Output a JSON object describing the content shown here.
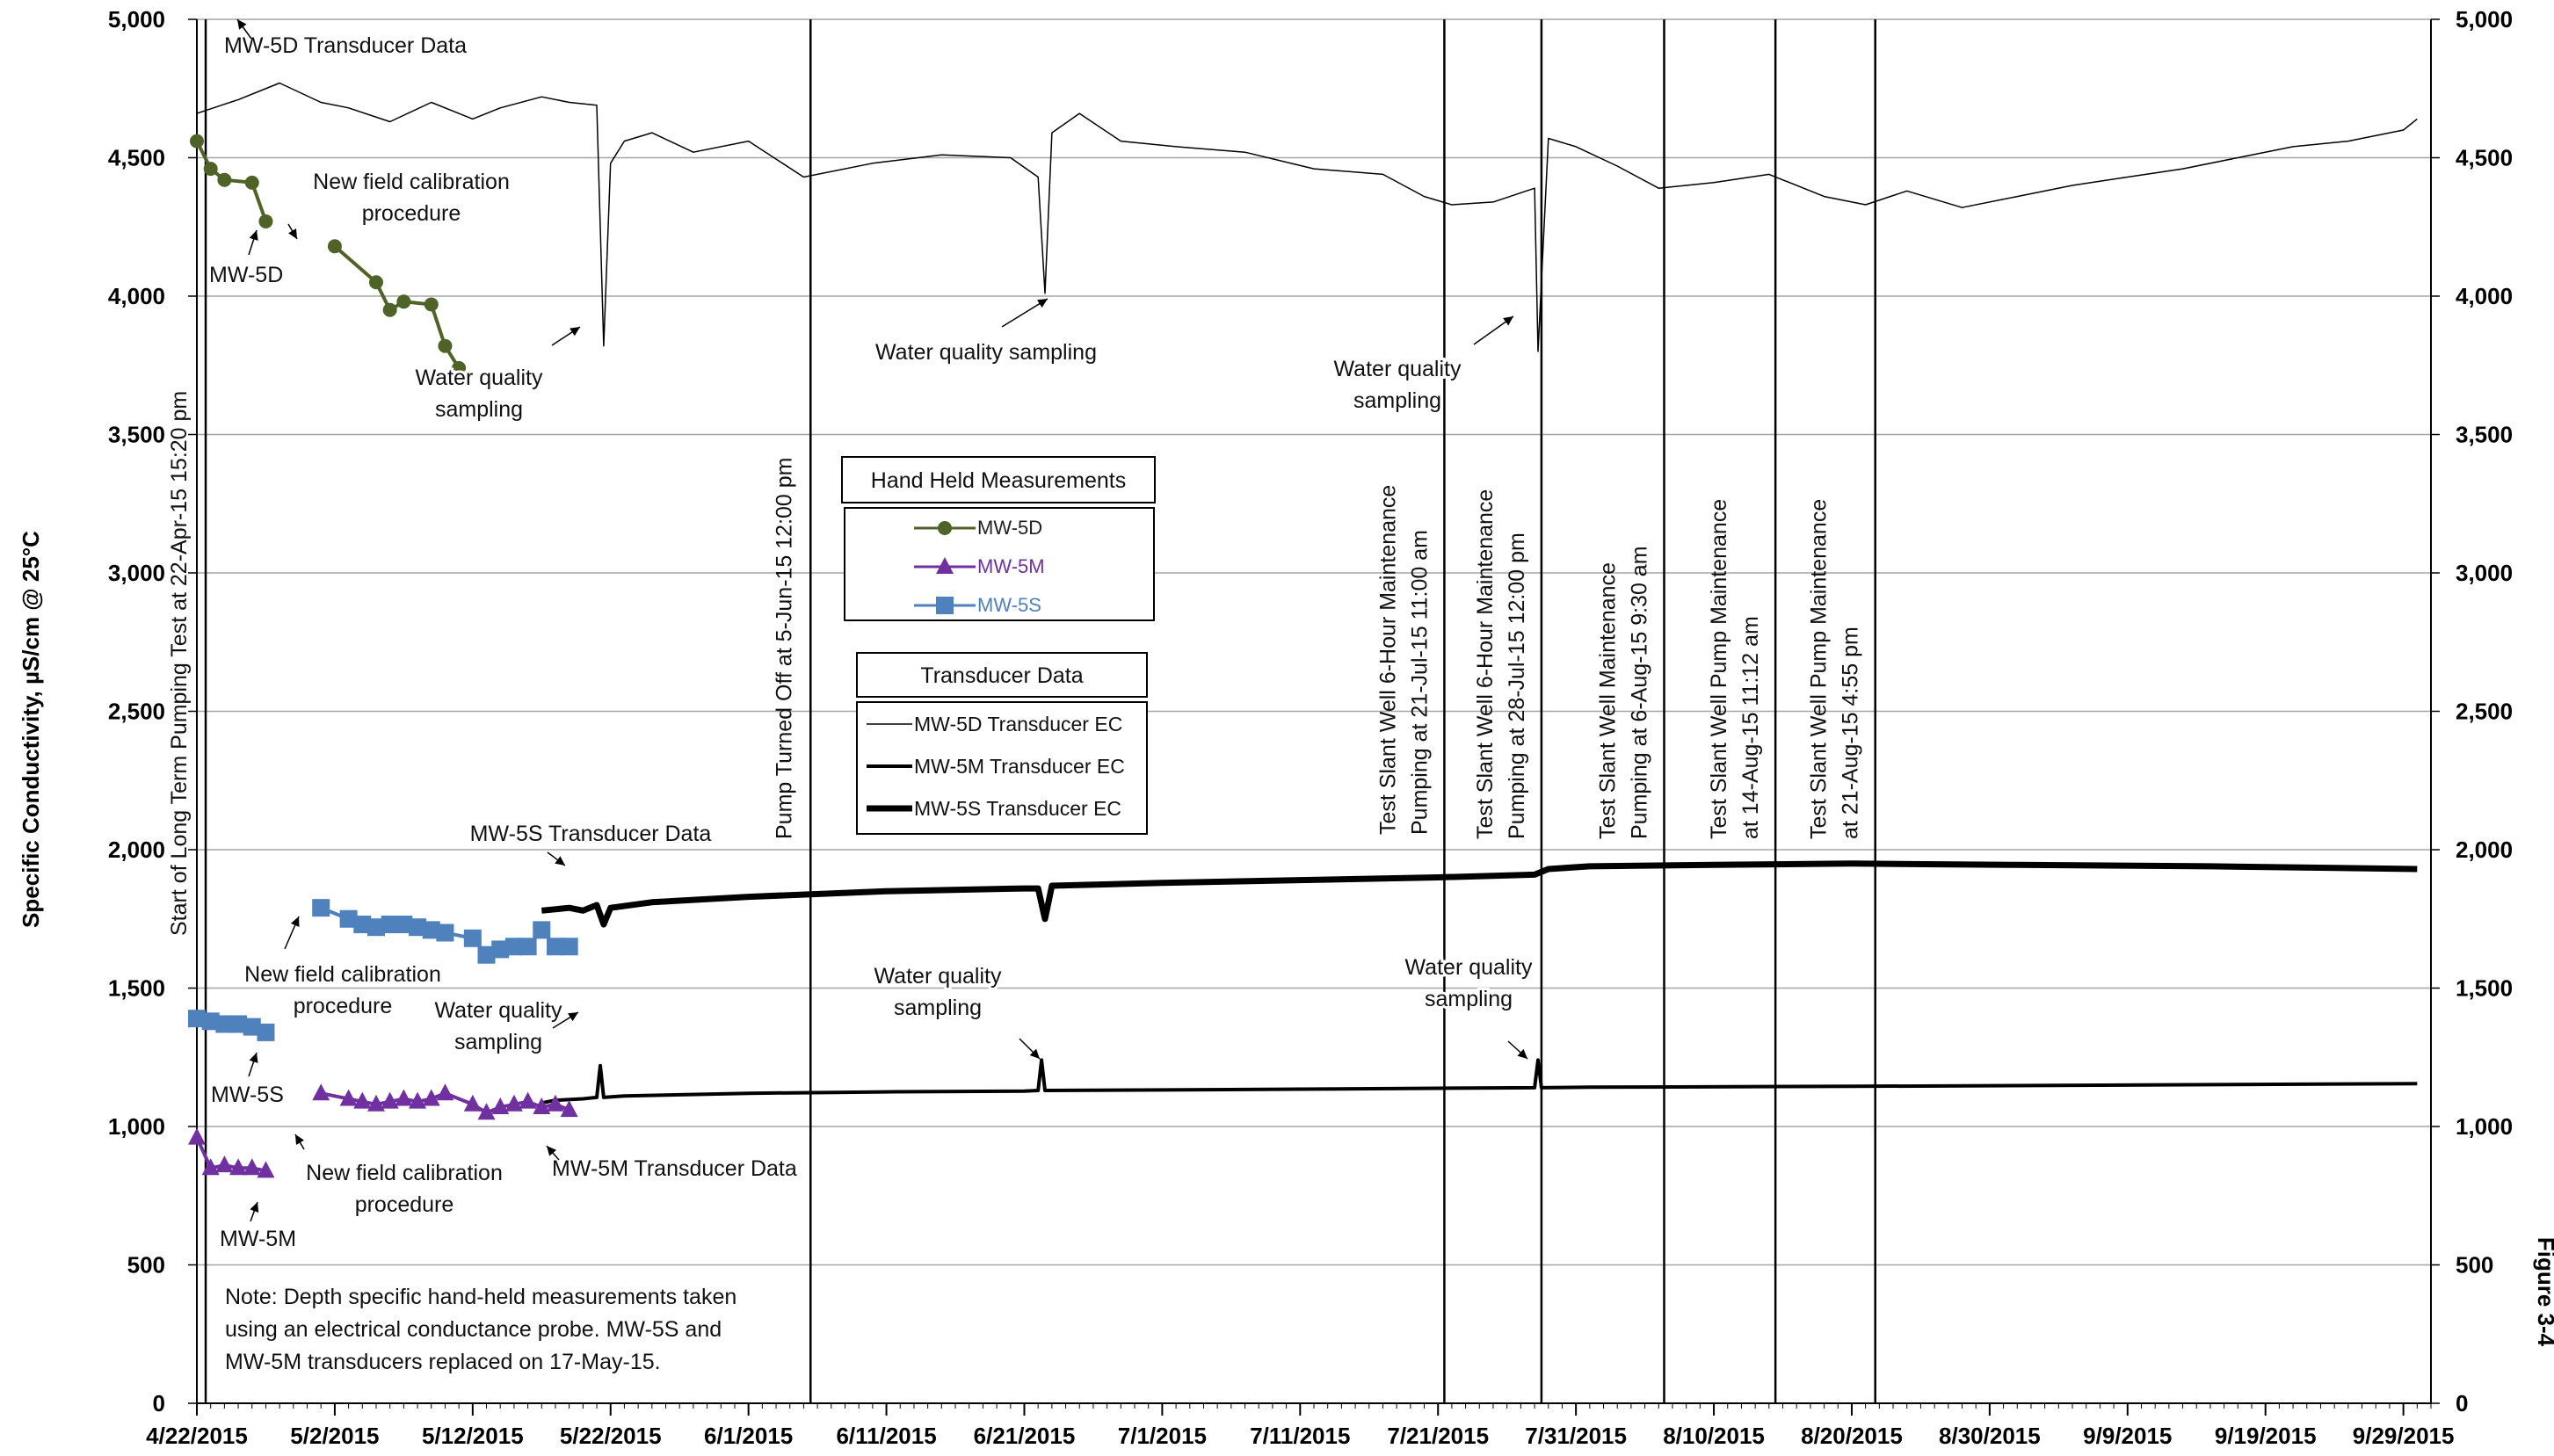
{
  "chart_data": {
    "type": "line",
    "ylabel": "Specific Conductivity, µS/cm @ 25°C",
    "figure_label": "Figure 3-4",
    "y_ticks_left": [
      "0",
      "500",
      "1,000",
      "1,500",
      "2,000",
      "2,500",
      "3,000",
      "3,500",
      "4,000",
      "4,500",
      "5,000"
    ],
    "y_ticks_right": [
      "0",
      "500",
      "1,000",
      "1,500",
      "2,000",
      "2,500",
      "3,000",
      "3,500",
      "4,000",
      "4,500",
      "5,000"
    ],
    "ylim": [
      0,
      5000
    ],
    "x_ticks": [
      "4/22/2015",
      "5/2/2015",
      "5/12/2015",
      "5/22/2015",
      "6/1/2015",
      "6/11/2015",
      "6/21/2015",
      "7/1/2015",
      "7/11/2015",
      "7/21/2015",
      "7/31/2015",
      "8/10/2015",
      "8/20/2015",
      "8/30/2015",
      "9/9/2015",
      "9/19/2015",
      "9/29/2015"
    ],
    "xlim": [
      "2015-04-22",
      "2015-10-01"
    ],
    "grid": true,
    "vertical_events": [
      {
        "date": "2015-04-22 15:20",
        "label": "Start of Long Term Pumping Test at 22-Apr-15 15:20 pm"
      },
      {
        "date": "2015-06-05 12:00",
        "label": "Pump Turned Off at 5-Jun-15 12:00 pm"
      },
      {
        "date": "2015-07-21 11:00",
        "label": "Test Slant Well 6-Hour Maintenance|Pumping at 21-Jul-15 11:00 am"
      },
      {
        "date": "2015-07-28 12:00",
        "label": "Test Slant Well 6-Hour Maintenance|Pumping at 28-Jul-15 12:00 pm"
      },
      {
        "date": "2015-08-06 09:30",
        "label": "Test Slant Well Maintenance|Pumping at 6-Aug-15 9:30 am"
      },
      {
        "date": "2015-08-14 11:12",
        "label": "Test Slant Well Pump Maintenance|at 14-Aug-15 11:12 am"
      },
      {
        "date": "2015-08-21 16:55",
        "label": "Test Slant Well Pump Maintenance|at 21-Aug-15 4:55 pm"
      }
    ],
    "legend_hand_held": {
      "title": "Hand Held Measurements",
      "entries": [
        {
          "name": "MW-5D",
          "color": "#4f6228",
          "marker": "circle"
        },
        {
          "name": "MW-5M",
          "color": "#7030a0",
          "marker": "triangle"
        },
        {
          "name": "MW-5S",
          "color": "#4f81bd",
          "marker": "square"
        }
      ]
    },
    "legend_transducer": {
      "title": "Transducer Data",
      "entries": [
        {
          "name": "MW-5D Transducer EC",
          "width": 1.5
        },
        {
          "name": "MW-5M Transducer EC",
          "width": 4
        },
        {
          "name": "MW-5S Transducer EC",
          "width": 7
        }
      ]
    },
    "hand_held_series": [
      {
        "name": "MW-5D",
        "color": "#4f6228",
        "marker": "circle",
        "segments": [
          {
            "x": [
              "2015-04-22",
              "2015-04-23",
              "2015-04-24",
              "2015-04-26",
              "2015-04-27"
            ],
            "y": [
              4560,
              4460,
              4420,
              4410,
              4270
            ]
          },
          {
            "x": [
              "2015-05-02",
              "2015-05-05",
              "2015-05-06",
              "2015-05-07",
              "2015-05-09",
              "2015-05-10",
              "2015-05-11"
            ],
            "y": [
              4180,
              4050,
              3950,
              3980,
              3970,
              3820,
              3740
            ]
          }
        ]
      },
      {
        "name": "MW-5M",
        "color": "#7030a0",
        "marker": "triangle",
        "segments": [
          {
            "x": [
              "2015-04-22",
              "2015-04-23",
              "2015-04-24",
              "2015-04-25",
              "2015-04-26",
              "2015-04-27"
            ],
            "y": [
              960,
              850,
              860,
              850,
              850,
              840
            ]
          },
          {
            "x": [
              "2015-05-01",
              "2015-05-03",
              "2015-05-04",
              "2015-05-05",
              "2015-05-06",
              "2015-05-07",
              "2015-05-08",
              "2015-05-09",
              "2015-05-10",
              "2015-05-12",
              "2015-05-13",
              "2015-05-14",
              "2015-05-15",
              "2015-05-16",
              "2015-05-17",
              "2015-05-18",
              "2015-05-19"
            ],
            "y": [
              1120,
              1100,
              1090,
              1080,
              1090,
              1100,
              1090,
              1100,
              1120,
              1080,
              1050,
              1070,
              1080,
              1090,
              1070,
              1080,
              1060
            ]
          }
        ]
      },
      {
        "name": "MW-5S",
        "color": "#4f81bd",
        "marker": "square",
        "segments": [
          {
            "x": [
              "2015-04-22",
              "2015-04-23",
              "2015-04-24",
              "2015-04-25",
              "2015-04-26",
              "2015-04-27"
            ],
            "y": [
              1390,
              1380,
              1370,
              1370,
              1360,
              1340
            ]
          },
          {
            "x": [
              "2015-05-01",
              "2015-05-03",
              "2015-05-04",
              "2015-05-05",
              "2015-05-06",
              "2015-05-07",
              "2015-05-08",
              "2015-05-09",
              "2015-05-10",
              "2015-05-12",
              "2015-05-13",
              "2015-05-14",
              "2015-05-15",
              "2015-05-16",
              "2015-05-17",
              "2015-05-18",
              "2015-05-19"
            ],
            "y": [
              1790,
              1750,
              1730,
              1720,
              1730,
              1730,
              1720,
              1710,
              1700,
              1680,
              1620,
              1640,
              1650,
              1650,
              1710,
              1650,
              1650
            ]
          }
        ]
      }
    ],
    "transducer_series": [
      {
        "name": "MW-5D Transducer EC",
        "width": 1.5,
        "x": [
          "2015-04-22",
          "2015-04-25",
          "2015-04-28",
          "2015-05-01",
          "2015-05-03",
          "2015-05-06",
          "2015-05-09",
          "2015-05-12",
          "2015-05-14",
          "2015-05-17",
          "2015-05-19",
          "2015-05-21",
          "2015-05-21 12:00",
          "2015-05-22",
          "2015-05-23",
          "2015-05-25",
          "2015-05-28",
          "2015-06-01",
          "2015-06-05",
          "2015-06-10",
          "2015-06-15",
          "2015-06-20",
          "2015-06-22",
          "2015-06-22 12:00",
          "2015-06-23",
          "2015-06-25",
          "2015-06-28",
          "2015-07-02",
          "2015-07-07",
          "2015-07-12",
          "2015-07-17",
          "2015-07-20",
          "2015-07-22",
          "2015-07-25",
          "2015-07-28",
          "2015-07-28 06:00",
          "2015-07-29",
          "2015-07-31",
          "2015-08-03",
          "2015-08-06",
          "2015-08-10",
          "2015-08-14",
          "2015-08-18",
          "2015-08-21",
          "2015-08-24",
          "2015-08-28",
          "2015-09-01",
          "2015-09-05",
          "2015-09-09",
          "2015-09-13",
          "2015-09-17",
          "2015-09-21",
          "2015-09-25",
          "2015-09-29",
          "2015-09-30"
        ],
        "y": [
          4660,
          4710,
          4770,
          4700,
          4680,
          4630,
          4700,
          4640,
          4680,
          4720,
          4700,
          4690,
          3820,
          4480,
          4560,
          4590,
          4520,
          4560,
          4430,
          4480,
          4510,
          4500,
          4430,
          4010,
          4590,
          4660,
          4560,
          4540,
          4520,
          4460,
          4440,
          4360,
          4330,
          4340,
          4390,
          3800,
          4570,
          4540,
          4470,
          4390,
          4410,
          4440,
          4360,
          4330,
          4380,
          4320,
          4360,
          4400,
          4430,
          4460,
          4500,
          4540,
          4560,
          4600,
          4640
        ]
      },
      {
        "name": "MW-5S Transducer EC",
        "width": 7,
        "x": [
          "2015-05-17",
          "2015-05-19",
          "2015-05-20",
          "2015-05-21",
          "2015-05-21 12:00",
          "2015-05-22",
          "2015-05-25",
          "2015-06-01",
          "2015-06-11",
          "2015-06-21",
          "2015-06-22",
          "2015-06-22 12:00",
          "2015-06-23",
          "2015-07-01",
          "2015-07-11",
          "2015-07-21",
          "2015-07-28",
          "2015-07-29",
          "2015-08-01",
          "2015-08-10",
          "2015-08-20",
          "2015-09-01",
          "2015-09-15",
          "2015-09-30"
        ],
        "y": [
          1780,
          1790,
          1780,
          1800,
          1730,
          1790,
          1810,
          1830,
          1850,
          1860,
          1860,
          1750,
          1870,
          1880,
          1890,
          1900,
          1910,
          1930,
          1940,
          1945,
          1950,
          1945,
          1940,
          1930
        ]
      },
      {
        "name": "MW-5M Transducer EC",
        "width": 4,
        "x": [
          "2015-05-17",
          "2015-05-18",
          "2015-05-20",
          "2015-05-21",
          "2015-05-21 06:00",
          "2015-05-21 12:00",
          "2015-05-23",
          "2015-06-01",
          "2015-06-11",
          "2015-06-21",
          "2015-06-22",
          "2015-06-22 06:00",
          "2015-06-22 12:00",
          "2015-07-01",
          "2015-07-11",
          "2015-07-21",
          "2015-07-28",
          "2015-07-28 06:00",
          "2015-07-28 12:00",
          "2015-08-01",
          "2015-08-20",
          "2015-09-10",
          "2015-09-30"
        ],
        "y": [
          1085,
          1095,
          1100,
          1105,
          1220,
          1105,
          1110,
          1120,
          1125,
          1128,
          1130,
          1240,
          1130,
          1132,
          1135,
          1138,
          1140,
          1240,
          1140,
          1142,
          1145,
          1150,
          1155
        ]
      }
    ],
    "annotations": [
      {
        "text": "MW-5D Transducer Data"
      },
      {
        "text": "New field calibration|procedure"
      },
      {
        "text": "MW-5D"
      },
      {
        "text": "Water quality|sampling"
      },
      {
        "text": "Water quality sampling"
      },
      {
        "text": "Water quality|sampling"
      },
      {
        "text": "MW-5S Transducer Data"
      },
      {
        "text": "New field calibration|procedure"
      },
      {
        "text": "Water quality|sampling"
      },
      {
        "text": "Water quality|sampling"
      },
      {
        "text": "Water quality|sampling"
      },
      {
        "text": "MW-5S"
      },
      {
        "text": "New field calibration|procedure"
      },
      {
        "text": "MW-5M Transducer Data"
      },
      {
        "text": "MW-5M"
      }
    ],
    "note": "Note: Depth specific hand-held measurements taken|using an electrical conductance probe. MW-5S and|MW-5M transducers replaced on 17-May-15."
  }
}
